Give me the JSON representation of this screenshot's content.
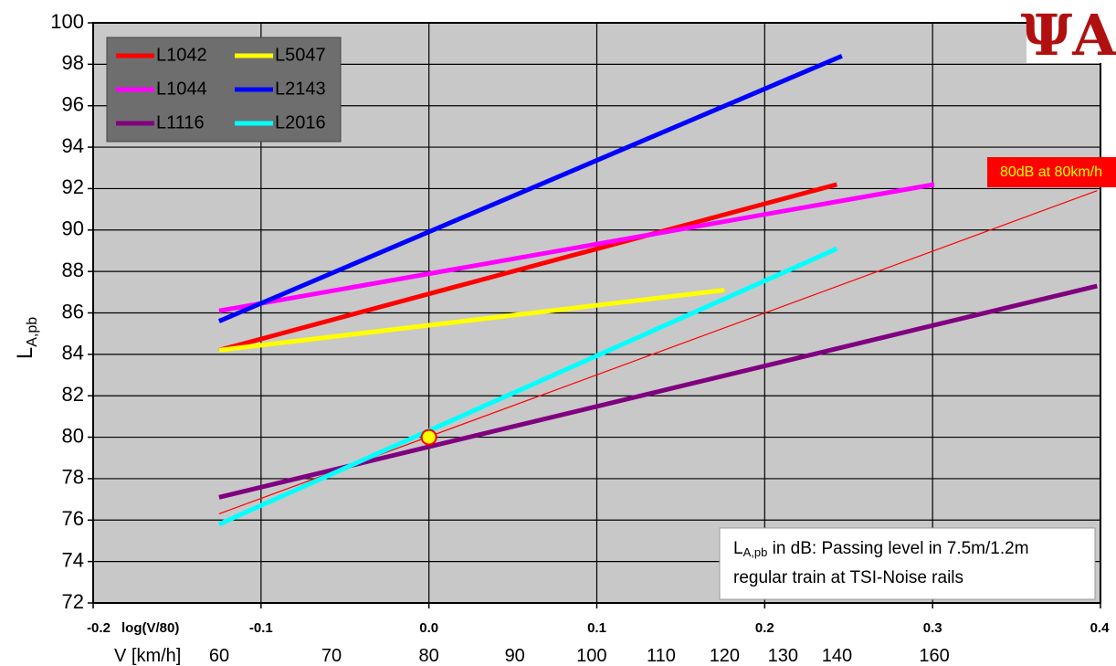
{
  "chart_data": {
    "type": "line",
    "ylabel_main": "L",
    "ylabel_sub": "A,pb",
    "xlabel": "log(V/80)",
    "x2label": "V [km/h]",
    "xlim": [
      -0.2,
      0.4
    ],
    "ylim": [
      72,
      100
    ],
    "grid": true,
    "x_ticks": [
      {
        "value": -0.2,
        "label": "-0.2"
      },
      {
        "value": -0.1,
        "label": "-0.1"
      },
      {
        "value": 0.0,
        "label": "0.0"
      },
      {
        "value": 0.1,
        "label": "0.1"
      },
      {
        "value": 0.2,
        "label": "0.2"
      },
      {
        "value": 0.3,
        "label": "0.3"
      },
      {
        "value": 0.4,
        "label": "0.4"
      }
    ],
    "y_ticks": [
      72,
      74,
      76,
      78,
      80,
      82,
      84,
      86,
      88,
      90,
      92,
      94,
      96,
      98,
      100
    ],
    "speed_ticks": [
      {
        "v": 60,
        "label": "60"
      },
      {
        "v": 70,
        "label": "70"
      },
      {
        "v": 80,
        "label": "80"
      },
      {
        "v": 90,
        "label": "90"
      },
      {
        "v": 100,
        "label": "100"
      },
      {
        "v": 110,
        "label": "110"
      },
      {
        "v": 120,
        "label": "120"
      },
      {
        "v": 130,
        "label": "130"
      },
      {
        "v": 140,
        "label": "140"
      },
      {
        "v": 160,
        "label": "160"
      }
    ],
    "series": [
      {
        "name": "L1042",
        "color": "#ff0000",
        "x": [
          -0.125,
          0.243
        ],
        "y": [
          84.2,
          92.2
        ]
      },
      {
        "name": "L5047",
        "color": "#ffff00",
        "x": [
          -0.125,
          0.176
        ],
        "y": [
          84.2,
          87.1
        ]
      },
      {
        "name": "L1044",
        "color": "#ff00ff",
        "x": [
          -0.125,
          0.301
        ],
        "y": [
          86.1,
          92.2
        ]
      },
      {
        "name": "L2143",
        "color": "#0000ff",
        "x": [
          -0.125,
          0.246
        ],
        "y": [
          85.6,
          98.4
        ]
      },
      {
        "name": "L1116",
        "color": "#800080",
        "x": [
          -0.125,
          0.398
        ],
        "y": [
          77.1,
          87.3
        ]
      },
      {
        "name": "L2016",
        "color": "#00ffff",
        "x": [
          -0.125,
          0.243
        ],
        "y": [
          75.8,
          89.1
        ]
      }
    ],
    "reference_line": {
      "color": "#ff0000",
      "x": [
        -0.125,
        0.398
      ],
      "y": [
        76.3,
        91.9
      ]
    },
    "marker": {
      "x": 0.0,
      "y": 80,
      "fill": "#ffff00",
      "stroke": "#ff0000"
    },
    "callout": {
      "text": "80dB at 80km/h",
      "background": "#ff0000",
      "color": "#ffff00"
    },
    "note": [
      "L",
      "A,pb",
      " in dB: Passing level in 7.5m/1.2m",
      "regular train at TSI-Noise rails"
    ],
    "legend_placement": "top-left",
    "plot_background": "#c8c8c8"
  },
  "logo": {
    "text": "ΨA"
  }
}
